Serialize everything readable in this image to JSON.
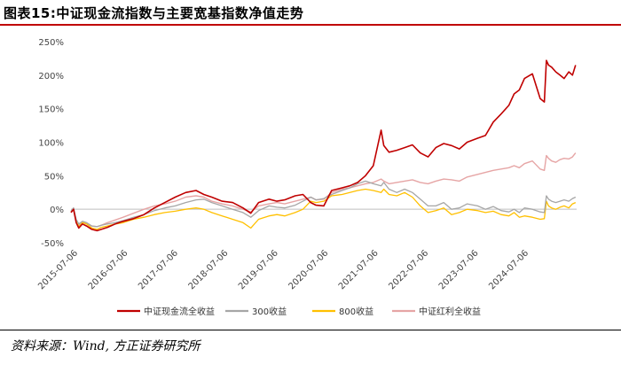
{
  "figure": {
    "title": "图表15:中证现金流指数与主要宽基指数净值走势",
    "source": "资料来源：Wind, 方正证券研究所"
  },
  "colors": {
    "accent_rule": "#c00000"
  },
  "chart_data": {
    "type": "line",
    "title": "",
    "xlabel": "",
    "ylabel": "",
    "ylim": [
      -50,
      250
    ],
    "yticks": [
      "250%",
      "200%",
      "150%",
      "100%",
      "50%",
      "0%",
      "-50%"
    ],
    "x_tick_labels": [
      "2015-07-06",
      "2016-07-06",
      "2017-07-06",
      "2018-07-06",
      "2019-07-06",
      "2020-07-06",
      "2021-07-06",
      "2022-07-06",
      "2023-07-06",
      "2024-07-06"
    ],
    "xlim": [
      2015.5,
      2025.2
    ],
    "grid": false,
    "legend_position": "bottom",
    "x": [
      2015.5,
      2015.55,
      2015.6,
      2015.65,
      2015.72,
      2015.8,
      2015.9,
      2016.0,
      2016.08,
      2016.2,
      2016.35,
      2016.5,
      2016.7,
      2016.9,
      2017.1,
      2017.3,
      2017.5,
      2017.7,
      2017.9,
      2018.05,
      2018.2,
      2018.4,
      2018.6,
      2018.8,
      2018.95,
      2019.1,
      2019.3,
      2019.45,
      2019.6,
      2019.8,
      2019.95,
      2020.1,
      2020.2,
      2020.35,
      2020.5,
      2020.7,
      2020.85,
      2021.0,
      2021.15,
      2021.3,
      2021.45,
      2021.5,
      2021.6,
      2021.75,
      2021.9,
      2022.05,
      2022.2,
      2022.35,
      2022.5,
      2022.65,
      2022.8,
      2022.95,
      2023.1,
      2023.3,
      2023.45,
      2023.6,
      2023.75,
      2023.9,
      2024.0,
      2024.1,
      2024.2,
      2024.35,
      2024.5,
      2024.58,
      2024.62,
      2024.66,
      2024.72,
      2024.8,
      2024.88,
      2024.96,
      2025.05,
      2025.12,
      2025.18
    ],
    "series": [
      {
        "name": "中证现金流全收益",
        "color": "#c00000",
        "width": 1.6,
        "values": [
          -5,
          0,
          -20,
          -28,
          -22,
          -25,
          -30,
          -32,
          -30,
          -27,
          -22,
          -18,
          -14,
          -8,
          2,
          10,
          18,
          25,
          28,
          22,
          18,
          12,
          10,
          2,
          -6,
          10,
          15,
          12,
          14,
          20,
          22,
          10,
          6,
          5,
          28,
          32,
          35,
          40,
          50,
          65,
          118,
          95,
          85,
          88,
          92,
          96,
          84,
          78,
          92,
          98,
          95,
          90,
          100,
          106,
          110,
          130,
          142,
          155,
          172,
          178,
          195,
          202,
          165,
          160,
          222,
          215,
          212,
          205,
          200,
          195,
          205,
          200,
          215
        ]
      },
      {
        "name": "300收益",
        "color": "#a6a6a6",
        "width": 1.3,
        "values": [
          -3,
          2,
          -15,
          -22,
          -18,
          -20,
          -25,
          -26,
          -24,
          -22,
          -20,
          -17,
          -12,
          -8,
          -2,
          2,
          5,
          10,
          14,
          15,
          10,
          5,
          0,
          -5,
          -12,
          -2,
          5,
          3,
          2,
          6,
          12,
          18,
          14,
          16,
          22,
          28,
          32,
          38,
          42,
          38,
          35,
          40,
          30,
          25,
          30,
          25,
          15,
          5,
          5,
          10,
          0,
          2,
          8,
          5,
          0,
          4,
          -2,
          -4,
          0,
          -5,
          2,
          0,
          -4,
          -5,
          20,
          15,
          12,
          10,
          12,
          14,
          12,
          16,
          18
        ]
      },
      {
        "name": "800收益",
        "color": "#ffc000",
        "width": 1.3,
        "values": [
          -4,
          0,
          -18,
          -26,
          -20,
          -22,
          -28,
          -30,
          -27,
          -25,
          -22,
          -20,
          -15,
          -12,
          -8,
          -5,
          -3,
          0,
          2,
          0,
          -5,
          -10,
          -15,
          -20,
          -28,
          -15,
          -10,
          -8,
          -10,
          -5,
          0,
          12,
          10,
          12,
          20,
          22,
          25,
          28,
          30,
          28,
          25,
          30,
          22,
          20,
          25,
          18,
          5,
          -5,
          -2,
          2,
          -8,
          -5,
          0,
          -2,
          -5,
          -3,
          -8,
          -10,
          -5,
          -12,
          -10,
          -12,
          -15,
          -14,
          12,
          5,
          2,
          0,
          3,
          5,
          2,
          8,
          10
        ]
      },
      {
        "name": "中证红利全收益",
        "color": "#e6a5a5",
        "width": 1.4,
        "values": [
          -4,
          2,
          -18,
          -24,
          -20,
          -22,
          -25,
          -26,
          -24,
          -20,
          -16,
          -12,
          -6,
          0,
          5,
          8,
          12,
          18,
          20,
          18,
          12,
          8,
          5,
          0,
          -4,
          5,
          8,
          10,
          8,
          12,
          15,
          18,
          14,
          15,
          25,
          30,
          32,
          35,
          38,
          40,
          45,
          42,
          38,
          40,
          42,
          44,
          40,
          38,
          42,
          45,
          44,
          42,
          48,
          52,
          55,
          58,
          60,
          62,
          65,
          62,
          68,
          72,
          60,
          58,
          80,
          76,
          72,
          70,
          74,
          76,
          75,
          78,
          84
        ]
      }
    ]
  }
}
